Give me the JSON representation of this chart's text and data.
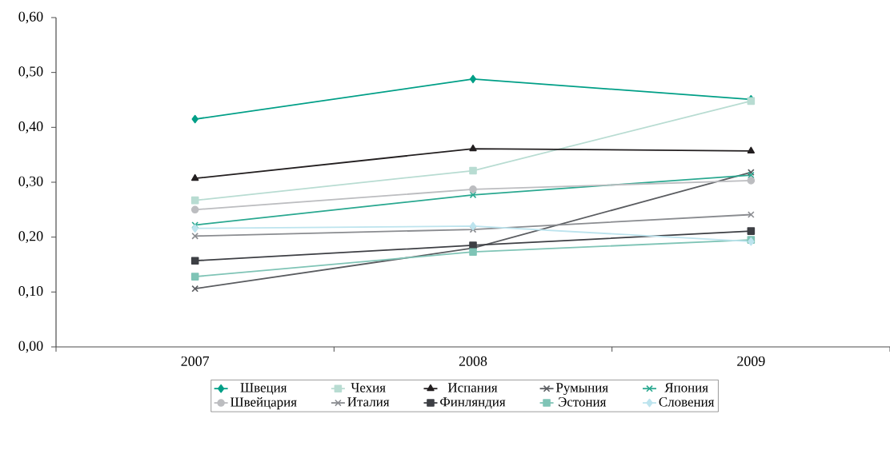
{
  "chart_data": {
    "type": "line",
    "categories": [
      "2007",
      "2008",
      "2009"
    ],
    "ylim": [
      0,
      0.6
    ],
    "yticks": [
      {
        "value": 0,
        "label": "0,00"
      },
      {
        "value": 0.1,
        "label": "0,10"
      },
      {
        "value": 0.2,
        "label": "0,20"
      },
      {
        "value": 0.3,
        "label": "0,30"
      },
      {
        "value": 0.4,
        "label": "0,40"
      },
      {
        "value": 0.5,
        "label": "0,50"
      },
      {
        "value": 0.6,
        "label": "0,60"
      }
    ],
    "legend": "bottom",
    "series": [
      {
        "name": "Швеция",
        "color": "#009f87",
        "marker": "diamond",
        "values": [
          0.415,
          0.488,
          0.451
        ]
      },
      {
        "name": "Чехия",
        "color": "#b8dcd2",
        "marker": "square",
        "values": [
          0.267,
          0.321,
          0.448
        ]
      },
      {
        "name": "Испания",
        "color": "#231f20",
        "marker": "triangle",
        "values": [
          0.307,
          0.361,
          0.357
        ]
      },
      {
        "name": "Румыния",
        "color": "#5a5c60",
        "marker": "cross",
        "values": [
          0.106,
          0.18,
          0.318
        ]
      },
      {
        "name": "Япония",
        "color": "#2aa890",
        "marker": "cross",
        "values": [
          0.222,
          0.277,
          0.313
        ]
      },
      {
        "name": "Швейцария",
        "color": "#bcbdc0",
        "marker": "circle",
        "values": [
          0.25,
          0.287,
          0.303
        ]
      },
      {
        "name": "Италия",
        "color": "#8a8c90",
        "marker": "cross",
        "values": [
          0.202,
          0.214,
          0.241
        ]
      },
      {
        "name": "Финляндия",
        "color": "#3d3f44",
        "marker": "square",
        "values": [
          0.157,
          0.185,
          0.211
        ]
      },
      {
        "name": "Эстония",
        "color": "#7fc4b6",
        "marker": "square",
        "values": [
          0.128,
          0.173,
          0.195
        ]
      },
      {
        "name": "Словения",
        "color": "#bde4ee",
        "marker": "diamond",
        "values": [
          0.216,
          0.22,
          0.192
        ]
      }
    ]
  }
}
